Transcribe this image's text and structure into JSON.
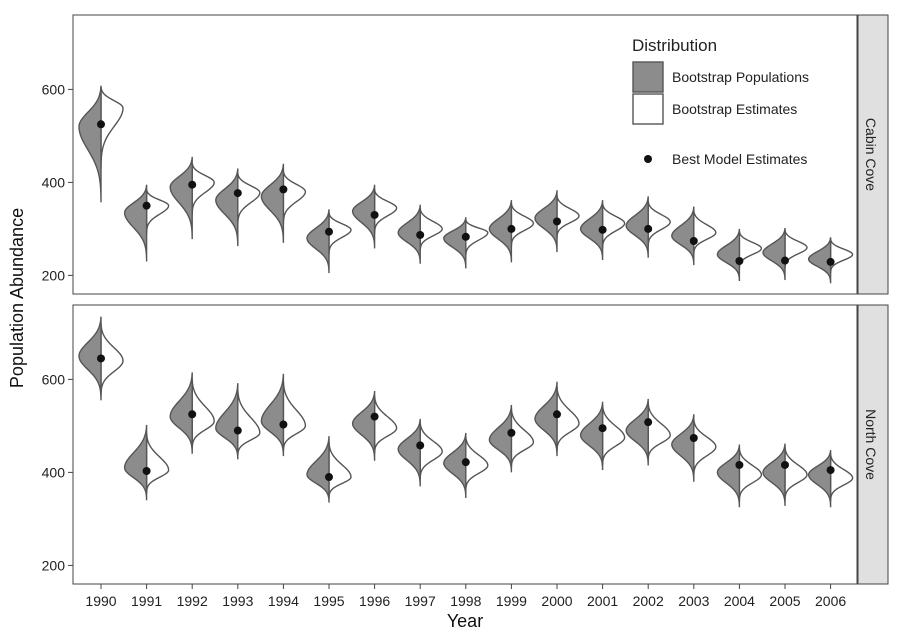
{
  "chart_data": {
    "type": "violin",
    "xlabel": "Year",
    "ylabel": "Population Abundance",
    "x": [
      "1990",
      "1991",
      "1992",
      "1993",
      "1994",
      "1995",
      "1996",
      "1997",
      "1998",
      "1999",
      "2000",
      "2001",
      "2002",
      "2003",
      "2004",
      "2005",
      "2006"
    ],
    "legend": {
      "title": "Distribution",
      "placement": "top-right",
      "entries": [
        {
          "key": "populations",
          "label": "Bootstrap Populations",
          "fill": "#8c8c8c"
        },
        {
          "key": "estimates",
          "label": "Bootstrap Estimates",
          "fill": "#ffffff"
        },
        {
          "key": "best",
          "label": "Best Model Estimates",
          "marker": "point"
        }
      ]
    },
    "colors": {
      "populations": "#8c8c8c",
      "estimates": "#ffffff",
      "outline": "#555555",
      "point": "#111111",
      "strip": "#e0e0e0"
    },
    "panels": [
      {
        "strip_label": "Cabin Cove",
        "ylim": [
          160,
          760
        ],
        "yticks": [
          200,
          400,
          600
        ],
        "best_estimate": [
          525,
          350,
          395,
          377,
          385,
          294,
          330,
          287,
          283,
          300,
          316,
          298,
          300,
          274,
          231,
          232,
          229
        ],
        "populations": {
          "center": [
            520,
            335,
            390,
            362,
            370,
            280,
            338,
            292,
            280,
            300,
            323,
            300,
            307,
            285,
            245,
            249,
            235
          ],
          "min": [
            357,
            230,
            278,
            263,
            270,
            205,
            258,
            225,
            215,
            228,
            250,
            233,
            238,
            222,
            188,
            190,
            183
          ],
          "max": [
            608,
            395,
            455,
            430,
            440,
            342,
            395,
            352,
            325,
            362,
            383,
            362,
            370,
            348,
            300,
            302,
            282
          ]
        },
        "estimates": {
          "center": [
            560,
            350,
            400,
            378,
            380,
            298,
            345,
            300,
            292,
            312,
            328,
            312,
            315,
            292,
            258,
            260,
            245
          ],
          "min": [
            430,
            290,
            330,
            308,
            310,
            245,
            290,
            252,
            240,
            262,
            280,
            258,
            262,
            245,
            215,
            215,
            205
          ],
          "max": [
            605,
            385,
            442,
            420,
            425,
            335,
            385,
            345,
            320,
            355,
            372,
            355,
            360,
            340,
            295,
            298,
            278
          ]
        }
      },
      {
        "strip_label": "North Cove",
        "ylim": [
          160,
          760
        ],
        "yticks": [
          200,
          400,
          600
        ],
        "best_estimate": [
          645,
          403,
          525,
          490,
          503,
          390,
          520,
          458,
          422,
          485,
          525,
          495,
          508,
          474,
          416,
          416,
          405
        ],
        "populations": {
          "center": [
            650,
            410,
            520,
            495,
            510,
            395,
            505,
            450,
            420,
            470,
            515,
            480,
            490,
            460,
            400,
            400,
            395
          ],
          "min": [
            555,
            340,
            440,
            428,
            435,
            335,
            425,
            370,
            345,
            400,
            435,
            405,
            415,
            380,
            325,
            328,
            325
          ],
          "max": [
            735,
            502,
            615,
            592,
            612,
            478,
            575,
            515,
            485,
            545,
            595,
            552,
            558,
            525,
            460,
            462,
            448
          ]
        },
        "estimates": {
          "center": [
            640,
            405,
            510,
            485,
            500,
            390,
            495,
            445,
            415,
            465,
            505,
            475,
            480,
            455,
            395,
            395,
            388
          ],
          "min": [
            565,
            355,
            450,
            435,
            445,
            345,
            440,
            385,
            360,
            410,
            445,
            415,
            425,
            392,
            338,
            340,
            338
          ],
          "max": [
            720,
            485,
            600,
            578,
            596,
            465,
            565,
            508,
            478,
            538,
            585,
            545,
            550,
            515,
            452,
            455,
            440
          ]
        }
      }
    ]
  }
}
